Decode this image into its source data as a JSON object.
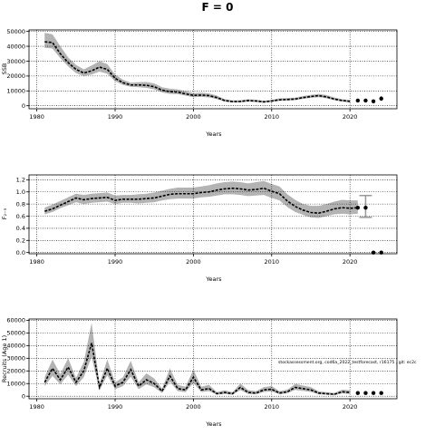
{
  "title": "F = 0",
  "chart_data": [
    {
      "type": "line",
      "panel": "ssb",
      "xlabel": "Years",
      "ylabel": "SSB",
      "xlim": [
        1979,
        2026
      ],
      "ylim": [
        -2000,
        51000
      ],
      "xticks": [
        1980,
        1990,
        2000,
        2010,
        2020
      ],
      "yticks": [
        0,
        10000,
        20000,
        30000,
        40000,
        50000
      ],
      "grid": true,
      "series": [
        {
          "x": [
            1981,
            1982,
            1983,
            1984,
            1985,
            1986,
            1987,
            1988,
            1989,
            1990,
            1991,
            1992,
            1993,
            1994,
            1995,
            1996,
            1997,
            1998,
            1999,
            2000,
            2001,
            2002,
            2003,
            2004,
            2005,
            2006,
            2007,
            2008,
            2009,
            2010,
            2011,
            2012,
            2013,
            2014,
            2015,
            2016,
            2017,
            2018,
            2019,
            2020
          ],
          "y": [
            43000,
            42500,
            35000,
            29000,
            24500,
            22000,
            23500,
            26000,
            24500,
            18500,
            15500,
            14000,
            14000,
            13800,
            12800,
            10500,
            9500,
            9200,
            8000,
            7000,
            7200,
            6800,
            5500,
            3500,
            2800,
            2900,
            3500,
            3200,
            2600,
            3200,
            4000,
            4200,
            4500,
            5500,
            6200,
            6800,
            6000,
            4500,
            3500,
            3000
          ],
          "lower": [
            39000,
            38500,
            32000,
            26500,
            22000,
            20000,
            21000,
            23000,
            21500,
            16500,
            14000,
            12800,
            12500,
            12000,
            11000,
            9000,
            8000,
            7800,
            6800,
            5800,
            6000,
            5600,
            4500,
            2800,
            2200,
            2300,
            2800,
            2500,
            2000,
            2600,
            3300,
            3500,
            3800,
            4600,
            5300,
            5800,
            5000,
            3700,
            2800,
            2300
          ],
          "upper": [
            49000,
            48000,
            40000,
            32500,
            27500,
            24500,
            27000,
            30000,
            28000,
            21000,
            17500,
            15500,
            15800,
            16000,
            15000,
            12500,
            11500,
            11000,
            9800,
            8500,
            8800,
            8300,
            6800,
            4500,
            3600,
            3700,
            4400,
            4100,
            3400,
            4000,
            5000,
            5200,
            5500,
            6500,
            7300,
            8000,
            7200,
            5600,
            4400,
            3900
          ]
        }
      ],
      "projection_points": {
        "x": [
          2021,
          2022,
          2023,
          2024
        ],
        "y": [
          3500,
          3500,
          3000,
          4800
        ]
      },
      "projection_interval": [
        {
          "x": 2021,
          "low": 2800,
          "high": 4500
        },
        {
          "x": 2022,
          "low": 2800,
          "high": 4500
        },
        {
          "x": 2023,
          "low": 2300,
          "high": 3900
        },
        {
          "x": 2024,
          "low": 3300,
          "high": 6500
        }
      ]
    },
    {
      "type": "line",
      "panel": "f",
      "xlabel": "Years",
      "ylabel": "F₂₋₅",
      "xlim": [
        1979,
        2026
      ],
      "ylim": [
        -0.02,
        1.28
      ],
      "xticks": [
        1980,
        1990,
        2000,
        2010,
        2020
      ],
      "yticks": [
        0.0,
        0.2,
        0.4,
        0.6,
        0.8,
        1.0,
        1.2
      ],
      "ytick_labels": [
        "0.0",
        "0.2",
        "0.4",
        "0.6",
        "0.8",
        "1.0",
        "1.2"
      ],
      "grid": true,
      "series": [
        {
          "x": [
            1981,
            1982,
            1983,
            1984,
            1985,
            1986,
            1987,
            1988,
            1989,
            1990,
            1991,
            1992,
            1993,
            1994,
            1995,
            1996,
            1997,
            1998,
            1999,
            2000,
            2001,
            2002,
            2003,
            2004,
            2005,
            2006,
            2007,
            2008,
            2009,
            2010,
            2011,
            2012,
            2013,
            2014,
            2015,
            2016,
            2017,
            2018,
            2019,
            2020,
            2021
          ],
          "y": [
            0.68,
            0.72,
            0.78,
            0.84,
            0.9,
            0.87,
            0.89,
            0.9,
            0.91,
            0.86,
            0.88,
            0.88,
            0.88,
            0.89,
            0.9,
            0.93,
            0.96,
            0.97,
            0.97,
            0.97,
            0.99,
            1.0,
            1.03,
            1.05,
            1.06,
            1.05,
            1.03,
            1.04,
            1.06,
            1.01,
            0.97,
            0.85,
            0.76,
            0.7,
            0.66,
            0.65,
            0.68,
            0.72,
            0.74,
            0.73,
            0.74
          ],
          "lower": [
            0.63,
            0.67,
            0.73,
            0.78,
            0.83,
            0.8,
            0.82,
            0.83,
            0.84,
            0.8,
            0.82,
            0.82,
            0.81,
            0.82,
            0.83,
            0.86,
            0.88,
            0.89,
            0.89,
            0.89,
            0.91,
            0.92,
            0.94,
            0.96,
            0.96,
            0.95,
            0.93,
            0.94,
            0.95,
            0.9,
            0.86,
            0.75,
            0.67,
            0.62,
            0.58,
            0.57,
            0.6,
            0.63,
            0.64,
            0.63,
            0.64
          ],
          "upper": [
            0.74,
            0.79,
            0.85,
            0.91,
            0.97,
            0.95,
            0.97,
            0.98,
            0.99,
            0.94,
            0.95,
            0.95,
            0.96,
            0.97,
            0.99,
            1.02,
            1.05,
            1.07,
            1.07,
            1.07,
            1.09,
            1.11,
            1.14,
            1.16,
            1.17,
            1.16,
            1.14,
            1.16,
            1.18,
            1.13,
            1.09,
            0.96,
            0.87,
            0.8,
            0.77,
            0.77,
            0.8,
            0.84,
            0.87,
            0.86,
            0.86
          ]
        }
      ],
      "projection_points": {
        "x": [
          2021,
          2022,
          2023,
          2024
        ],
        "y": [
          0.74,
          0.74,
          0.0,
          0.0
        ]
      },
      "error_bar": {
        "x": 2022,
        "low": 0.58,
        "high": 0.94
      }
    },
    {
      "type": "line",
      "panel": "recruits",
      "xlabel": "Years",
      "ylabel": "Recruits (Age 1)",
      "xlim": [
        1979,
        2026
      ],
      "ylim": [
        -2000,
        61000
      ],
      "xticks": [
        1980,
        1990,
        2000,
        2010,
        2020
      ],
      "yticks": [
        0,
        10000,
        20000,
        30000,
        40000,
        50000,
        60000
      ],
      "grid": true,
      "annotation": "stockassessment.org, cod6a_2022_testforecast, r16175 , git: ec2c",
      "series": [
        {
          "x": [
            1981,
            1982,
            1983,
            1984,
            1985,
            1986,
            1987,
            1988,
            1989,
            1990,
            1991,
            1992,
            1993,
            1994,
            1995,
            1996,
            1997,
            1998,
            1999,
            2000,
            2001,
            2002,
            2003,
            2004,
            2005,
            2006,
            2007,
            2008,
            2009,
            2010,
            2011,
            2012,
            2013,
            2014,
            2015,
            2016,
            2017,
            2018,
            2019,
            2020
          ],
          "y": [
            11000,
            22000,
            13000,
            23000,
            11000,
            20000,
            42000,
            7000,
            22000,
            8000,
            11000,
            21000,
            8000,
            13000,
            10000,
            4000,
            16000,
            6000,
            5000,
            15000,
            5000,
            6000,
            2000,
            3000,
            2000,
            7000,
            3000,
            2500,
            5000,
            5500,
            2500,
            3500,
            7000,
            6000,
            5000,
            2500,
            2000,
            1500,
            3500,
            3000
          ],
          "lower": [
            8000,
            16000,
            9500,
            17000,
            8000,
            15000,
            31000,
            4500,
            16500,
            5500,
            8000,
            15500,
            5500,
            9500,
            7000,
            2500,
            11500,
            4000,
            3200,
            10500,
            3300,
            4000,
            1200,
            1800,
            1200,
            4800,
            1800,
            1500,
            3400,
            3800,
            1500,
            2300,
            5000,
            4200,
            3400,
            1500,
            1200,
            800,
            2200,
            1800
          ],
          "upper": [
            15000,
            29000,
            17500,
            30000,
            14500,
            27000,
            58000,
            10000,
            29000,
            11000,
            15000,
            28000,
            11000,
            18000,
            14000,
            6000,
            22000,
            9000,
            7500,
            21000,
            7500,
            9000,
            3300,
            4700,
            3200,
            10000,
            4800,
            4000,
            7200,
            8000,
            4000,
            5200,
            9700,
            8500,
            7200,
            3900,
            3200,
            2600,
            5200,
            4700
          ]
        }
      ],
      "projection_points": {
        "x": [
          2021,
          2022,
          2023,
          2024
        ],
        "y": [
          2500,
          2500,
          2500,
          2500
        ]
      }
    }
  ]
}
